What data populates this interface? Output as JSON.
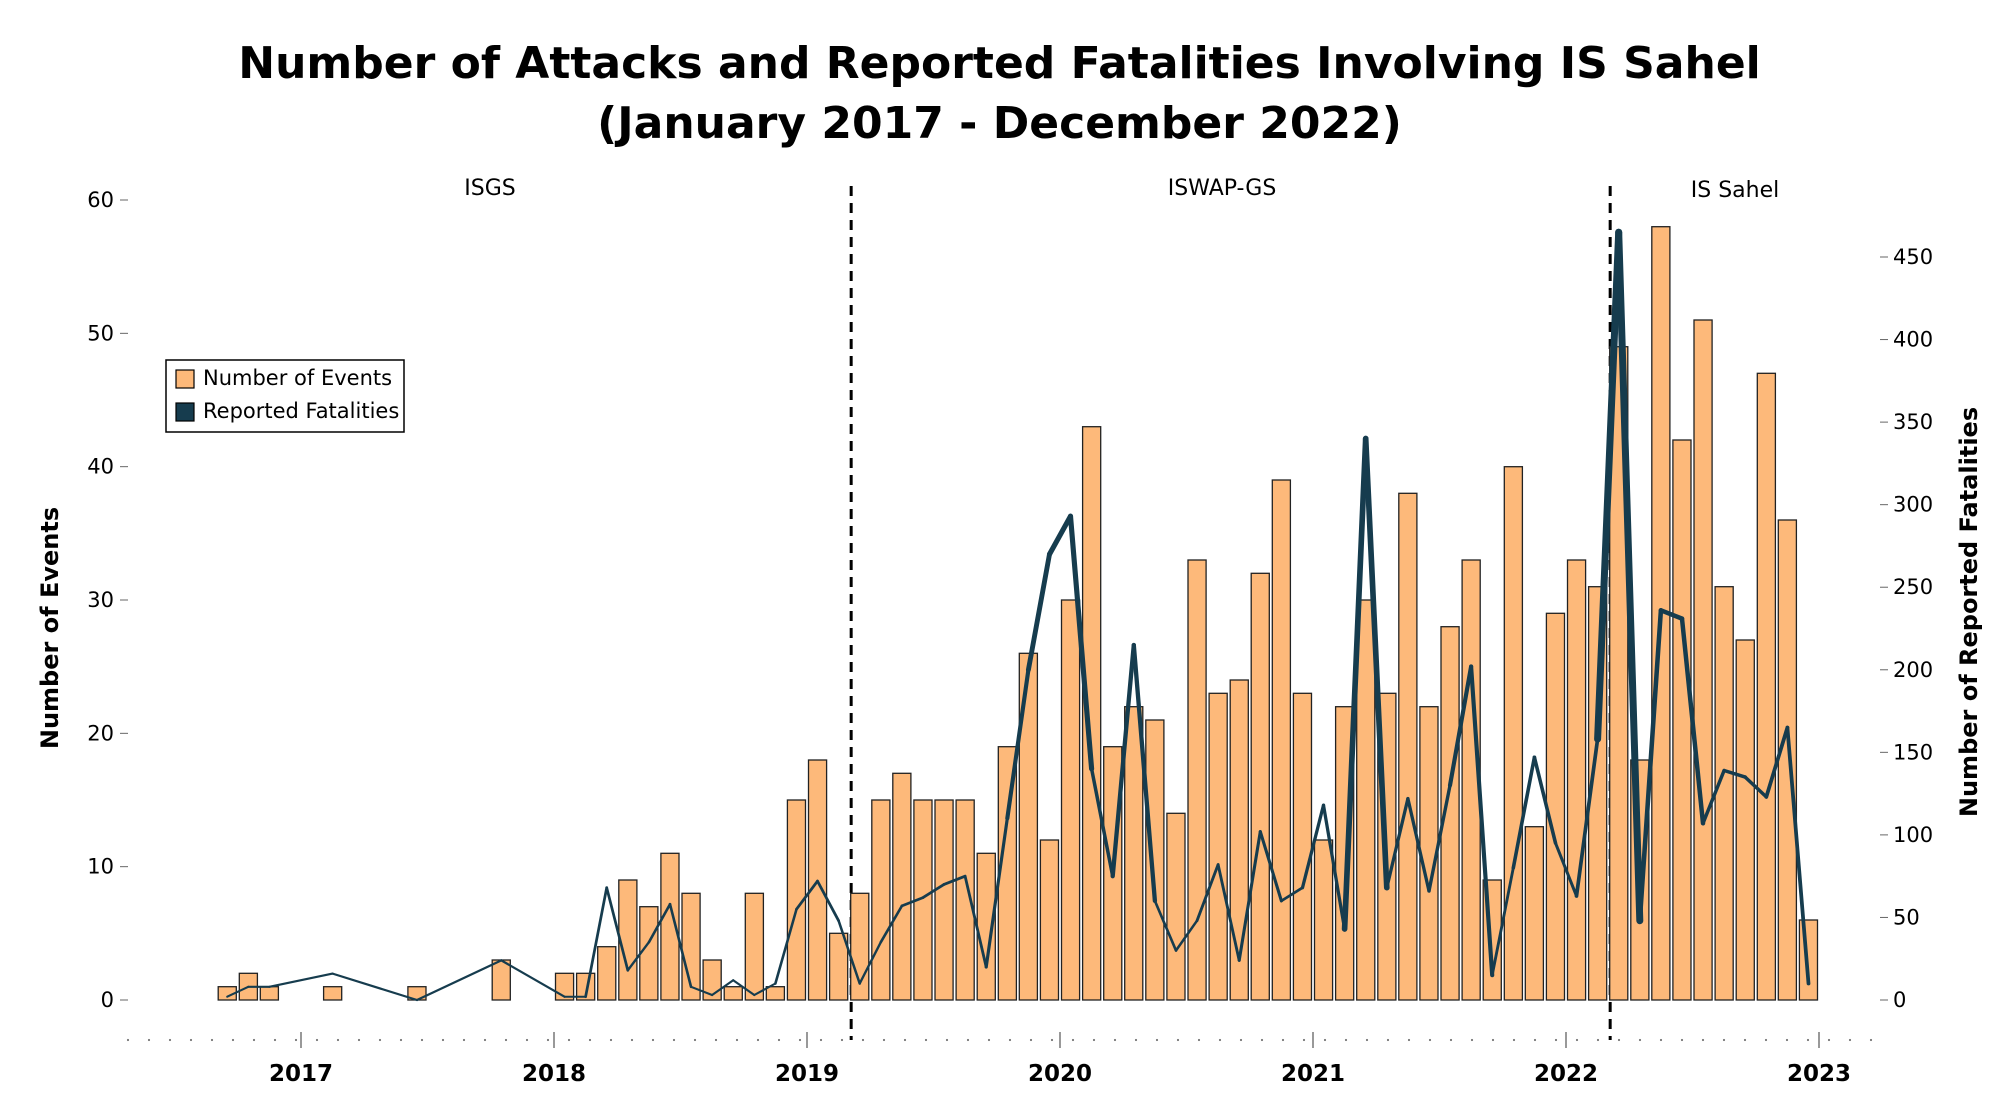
{
  "chart_data": {
    "type": "bar",
    "title_lines": [
      "Number of Attacks and Reported Fatalities Involving IS Sahel",
      "(January 2017 - December 2022)"
    ],
    "ylabel_left": "Number of Events",
    "ylabel_right": "Number of Reported Fatalities",
    "y_left_ticks": [
      0,
      10,
      20,
      30,
      40,
      50,
      60
    ],
    "y_right_ticks": [
      0,
      50,
      100,
      150,
      200,
      250,
      300,
      350,
      400,
      450
    ],
    "x_ticks": [
      "2017",
      "2018",
      "2019",
      "2020",
      "2021",
      "2022",
      "2023"
    ],
    "ylim_left": [
      0,
      60
    ],
    "ylim_right": [
      0,
      485
    ],
    "legend": {
      "placement": "top-left",
      "entries": [
        {
          "label": "Number of Events",
          "color": "#FDB97A"
        },
        {
          "label": "Reported Fatalities",
          "color": "#163C4E"
        }
      ]
    },
    "phase_labels": [
      "ISGS",
      "ISWAP-GS",
      "IS Sahel"
    ],
    "phase_dividers": [
      "2019-03",
      "2022-03"
    ],
    "colors": {
      "bar_fill": "#FDB97A",
      "bar_stroke": "#222222",
      "line": "#163C4E"
    },
    "series": [
      {
        "name": "Number of Events",
        "kind": "bar",
        "x": [
          "2016-09",
          "2016-10",
          "2016-11",
          "2017-02",
          "2017-06",
          "2017-10",
          "2018-01",
          "2018-02",
          "2018-03",
          "2018-04",
          "2018-05",
          "2018-06",
          "2018-07",
          "2018-08",
          "2018-09",
          "2018-10",
          "2018-11",
          "2018-12",
          "2019-01",
          "2019-02",
          "2019-03",
          "2019-04",
          "2019-05",
          "2019-06",
          "2019-07",
          "2019-08",
          "2019-09",
          "2019-10",
          "2019-11",
          "2019-12",
          "2020-01",
          "2020-02",
          "2020-03",
          "2020-04",
          "2020-05",
          "2020-06",
          "2020-07",
          "2020-08",
          "2020-09",
          "2020-10",
          "2020-11",
          "2020-12",
          "2021-01",
          "2021-02",
          "2021-03",
          "2021-04",
          "2021-05",
          "2021-06",
          "2021-07",
          "2021-08",
          "2021-09",
          "2021-10",
          "2021-11",
          "2021-12",
          "2022-01",
          "2022-02",
          "2022-03",
          "2022-04",
          "2022-05",
          "2022-06",
          "2022-07",
          "2022-08",
          "2022-09",
          "2022-10",
          "2022-11",
          "2022-12"
        ],
        "values": [
          1,
          2,
          1,
          1,
          1,
          3,
          2,
          2,
          4,
          9,
          7,
          11,
          8,
          3,
          1,
          8,
          1,
          15,
          18,
          5,
          8,
          15,
          17,
          15,
          15,
          15,
          11,
          19,
          26,
          12,
          30,
          43,
          19,
          22,
          21,
          14,
          33,
          23,
          24,
          32,
          39,
          23,
          12,
          22,
          30,
          23,
          38,
          22,
          28,
          33,
          9,
          40,
          13,
          29,
          33,
          31,
          49,
          18,
          58,
          42,
          51,
          31,
          27,
          47,
          36,
          6
        ]
      },
      {
        "name": "Reported Fatalities",
        "kind": "line",
        "x": [
          "2016-09",
          "2016-10",
          "2016-11",
          "2017-02",
          "2017-06",
          "2017-10",
          "2018-01",
          "2018-02",
          "2018-03",
          "2018-04",
          "2018-05",
          "2018-06",
          "2018-07",
          "2018-08",
          "2018-09",
          "2018-10",
          "2018-11",
          "2018-12",
          "2019-01",
          "2019-02",
          "2019-03",
          "2019-04",
          "2019-05",
          "2019-06",
          "2019-07",
          "2019-08",
          "2019-09",
          "2019-10",
          "2019-11",
          "2019-12",
          "2020-01",
          "2020-02",
          "2020-03",
          "2020-04",
          "2020-05",
          "2020-06",
          "2020-07",
          "2020-08",
          "2020-09",
          "2020-10",
          "2020-11",
          "2020-12",
          "2021-01",
          "2021-02",
          "2021-03",
          "2021-04",
          "2021-05",
          "2021-06",
          "2021-07",
          "2021-08",
          "2021-09",
          "2021-10",
          "2021-11",
          "2021-12",
          "2022-01",
          "2022-02",
          "2022-03",
          "2022-04",
          "2022-05",
          "2022-06",
          "2022-07",
          "2022-08",
          "2022-09",
          "2022-10",
          "2022-11",
          "2022-12"
        ],
        "values": [
          2,
          8,
          8,
          16,
          0,
          24,
          2,
          2,
          68,
          18,
          35,
          58,
          8,
          3,
          12,
          3,
          10,
          55,
          72,
          48,
          10,
          35,
          57,
          62,
          70,
          75,
          20,
          110,
          200,
          270,
          293,
          140,
          75,
          215,
          60,
          30,
          48,
          82,
          24,
          102,
          60,
          68,
          118,
          43,
          340,
          68,
          122,
          66,
          130,
          202,
          15,
          80,
          147,
          95,
          63,
          158,
          465,
          48,
          236,
          231,
          107,
          139,
          135,
          123,
          165,
          10
        ]
      }
    ]
  }
}
